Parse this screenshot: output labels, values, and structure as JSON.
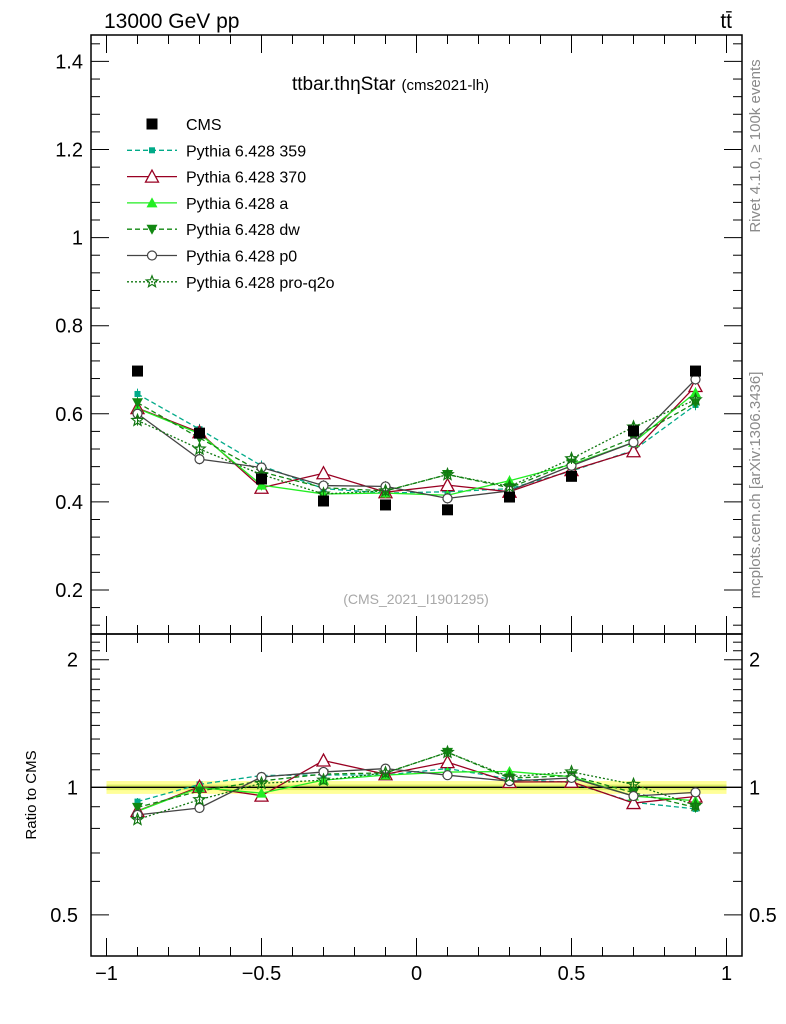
{
  "header": {
    "energy": "13000 GeV pp",
    "process": "tt̄"
  },
  "side_labels": {
    "rivet": "Rivet 4.1.0, ≥ 100k events",
    "mcplots": "mcplots.cern.ch [arXiv:1306.3436]"
  },
  "chart_data": {
    "type": "line",
    "title": "ttbar.thηStar",
    "subtitle": "(cms2021-lh)",
    "analysis": "(CMS_2021_I1901295)",
    "x": [
      -0.9,
      -0.7,
      -0.5,
      -0.3,
      -0.1,
      0.1,
      0.3,
      0.5,
      0.7,
      0.9
    ],
    "xlim": [
      -1.05,
      1.05
    ],
    "x_ticks": [
      -1,
      -0.5,
      0,
      0.5,
      1
    ],
    "x_tick_labels": [
      "−1",
      "−0.5",
      "0",
      "0.5",
      "1"
    ],
    "main": {
      "ylim": [
        0.1,
        1.46
      ],
      "y_ticks": [
        0.2,
        0.4,
        0.6,
        0.8,
        1.0,
        1.2,
        1.4
      ],
      "y_tick_labels": [
        "0.2",
        "0.4",
        "0.6",
        "0.8",
        "1",
        "1.2",
        "1.4"
      ]
    },
    "ratio": {
      "ylabel": "Ratio to CMS",
      "ylim": [
        0.4,
        2.3
      ],
      "y_ticks": [
        0.5,
        1,
        2
      ],
      "y_tick_labels": [
        "0.5",
        "1",
        "2"
      ]
    },
    "data": {
      "name": "CMS",
      "values": [
        0.697,
        0.556,
        0.452,
        0.402,
        0.393,
        0.382,
        0.411,
        0.458,
        0.561,
        0.697
      ]
    },
    "series": [
      {
        "name": "Pythia 6.428 359",
        "color": "#00aa88",
        "dash": "5,3",
        "marker": "smallsquare",
        "values": [
          0.645,
          0.565,
          0.482,
          0.43,
          0.42,
          0.423,
          0.43,
          0.47,
          0.517,
          0.62
        ]
      },
      {
        "name": "Pythia 6.428 370",
        "color": "#990022",
        "dash": "",
        "marker": "triangle-open",
        "values": [
          0.613,
          0.558,
          0.432,
          0.465,
          0.422,
          0.438,
          0.423,
          0.472,
          0.515,
          0.663
        ]
      },
      {
        "name": "Pythia 6.428 a",
        "color": "#22ee22",
        "dash": "",
        "marker": "triangle",
        "values": [
          0.612,
          0.555,
          0.438,
          0.418,
          0.42,
          0.415,
          0.448,
          0.485,
          0.535,
          0.648
        ]
      },
      {
        "name": "Pythia 6.428 dw",
        "color": "#118811",
        "dash": "5,3",
        "marker": "triangle-down",
        "values": [
          0.625,
          0.545,
          0.468,
          0.432,
          0.425,
          0.462,
          0.432,
          0.488,
          0.545,
          0.625
        ]
      },
      {
        "name": "Pythia 6.428 p0",
        "color": "#444444",
        "dash": "",
        "marker": "circle-open",
        "values": [
          0.6,
          0.497,
          0.478,
          0.437,
          0.435,
          0.408,
          0.425,
          0.482,
          0.535,
          0.678
        ]
      },
      {
        "name": "Pythia 6.428 pro-q2o",
        "color": "#117711",
        "dash": "2,2",
        "marker": "star",
        "values": [
          0.585,
          0.52,
          0.462,
          0.418,
          0.425,
          0.462,
          0.435,
          0.498,
          0.57,
          0.632
        ]
      }
    ]
  }
}
